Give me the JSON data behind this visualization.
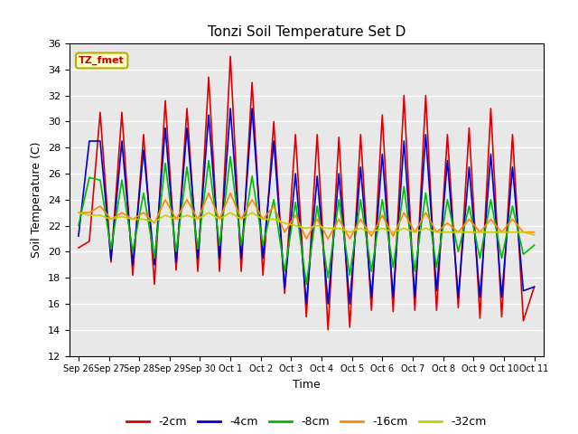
{
  "title": "Tonzi Soil Temperature Set D",
  "xlabel": "Time",
  "ylabel": "Soil Temperature (C)",
  "ylim": [
    12,
    36
  ],
  "yticks": [
    12,
    14,
    16,
    18,
    20,
    22,
    24,
    26,
    28,
    30,
    32,
    34,
    36
  ],
  "annotation": "TZ_fmet",
  "bg_color": "#e8e8e8",
  "fig_bg_color": "#ffffff",
  "legend": [
    "-2cm",
    "-4cm",
    "-8cm",
    "-16cm",
    "-32cm"
  ],
  "line_colors": [
    "#dd0000",
    "#0000cc",
    "#00bb00",
    "#ff8800",
    "#cccc00"
  ],
  "x_labels": [
    "Sep 26",
    "Sep 27",
    "Sep 28",
    "Sep 29",
    "Sep 30",
    "Oct 1",
    "Oct 2",
    "Oct 3",
    "Oct 4",
    "Oct 5",
    "Oct 6",
    "Oct 7",
    "Oct 8",
    "Oct 9",
    "Oct 10",
    "Oct 11"
  ],
  "series": {
    "-2cm": [
      20.3,
      20.8,
      30.7,
      19.2,
      30.7,
      18.2,
      29.0,
      17.5,
      31.6,
      18.6,
      31.0,
      18.5,
      33.4,
      18.5,
      35.0,
      18.5,
      33.0,
      18.2,
      30.0,
      16.8,
      29.0,
      15.0,
      29.0,
      14.0,
      28.8,
      14.2,
      29.0,
      15.5,
      30.5,
      15.4,
      32.0,
      15.5,
      32.0,
      15.5,
      29.0,
      15.7,
      29.5,
      14.9,
      31.0,
      15.0,
      29.0,
      14.7,
      17.3
    ],
    "-4cm": [
      21.2,
      28.5,
      28.5,
      19.4,
      28.5,
      19.0,
      27.8,
      19.0,
      29.5,
      19.2,
      29.5,
      19.5,
      30.5,
      19.5,
      31.0,
      19.5,
      31.0,
      19.5,
      28.5,
      17.2,
      26.0,
      16.0,
      25.8,
      16.0,
      26.0,
      16.0,
      26.5,
      16.5,
      27.5,
      16.5,
      28.5,
      16.5,
      29.0,
      17.0,
      27.0,
      16.5,
      26.5,
      16.5,
      27.5,
      16.5,
      26.5,
      17.0,
      17.3
    ],
    "-8cm": [
      22.0,
      25.7,
      25.5,
      20.2,
      25.5,
      20.0,
      24.5,
      19.5,
      26.8,
      20.0,
      26.5,
      20.2,
      27.0,
      20.5,
      27.3,
      20.5,
      25.8,
      20.5,
      24.0,
      18.5,
      23.8,
      17.5,
      23.5,
      18.0,
      24.0,
      18.2,
      24.0,
      18.5,
      24.0,
      18.8,
      25.0,
      18.5,
      24.5,
      18.8,
      24.0,
      20.0,
      23.5,
      19.5,
      24.0,
      19.5,
      23.5,
      19.8,
      20.5
    ],
    "-16cm": [
      23.0,
      23.0,
      23.5,
      22.5,
      23.0,
      22.5,
      23.0,
      22.2,
      24.0,
      22.5,
      24.0,
      22.5,
      24.5,
      22.5,
      24.5,
      22.5,
      24.0,
      22.5,
      23.5,
      21.5,
      22.8,
      21.0,
      22.5,
      21.0,
      22.5,
      21.0,
      22.5,
      21.2,
      22.8,
      21.2,
      23.0,
      21.5,
      23.0,
      21.5,
      22.2,
      21.5,
      22.5,
      21.5,
      22.5,
      21.5,
      22.5,
      21.5,
      21.5
    ],
    "-32cm": [
      23.0,
      22.8,
      22.8,
      22.5,
      22.7,
      22.5,
      22.5,
      22.3,
      22.8,
      22.5,
      22.8,
      22.5,
      23.0,
      22.5,
      23.0,
      22.5,
      23.0,
      22.5,
      22.5,
      22.2,
      22.0,
      21.8,
      22.0,
      21.8,
      21.8,
      21.5,
      21.8,
      21.5,
      21.8,
      21.5,
      21.8,
      21.5,
      21.8,
      21.5,
      21.5,
      21.5,
      21.5,
      21.5,
      21.5,
      21.5,
      21.5,
      21.5,
      21.3
    ]
  }
}
